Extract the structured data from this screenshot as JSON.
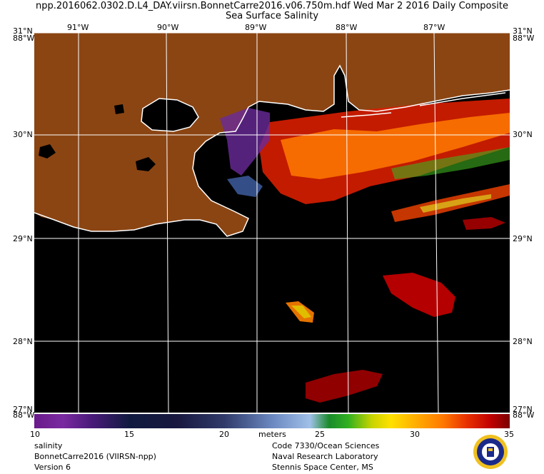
{
  "title": {
    "line1": "npp.2016062.0302.D.L4_DAY.viirsn.BonnetCarre2016.v06.750m.hdf    Wed Mar  2 2016 Daily Composite",
    "line2": "Sea Surface Salinity"
  },
  "map": {
    "lon_labels": [
      "91°W",
      "90°W",
      "89°W",
      "88°W",
      "87°W"
    ],
    "lat_labels": [
      "31°N",
      "30°N",
      "29°N",
      "28°N",
      "27°N"
    ],
    "edge_overlay": "88°W",
    "land_color": "#8b4513",
    "water_color": "#000000",
    "grid_color": "#ffffff"
  },
  "colorbar": {
    "ticks": [
      "10",
      "15",
      "20",
      "25",
      "30",
      "35"
    ],
    "units": "meters",
    "range": [
      10,
      35
    ]
  },
  "footer": {
    "left": [
      "salinity",
      "BonnetCarre2016 (VIIRSN-npp)",
      "Version 6"
    ],
    "right": [
      "Code 7330/Ocean Sciences",
      "Naval Research Laboratory",
      "Stennis Space Center, MS"
    ]
  },
  "logo": {
    "icon": "navy-seal-logo"
  }
}
